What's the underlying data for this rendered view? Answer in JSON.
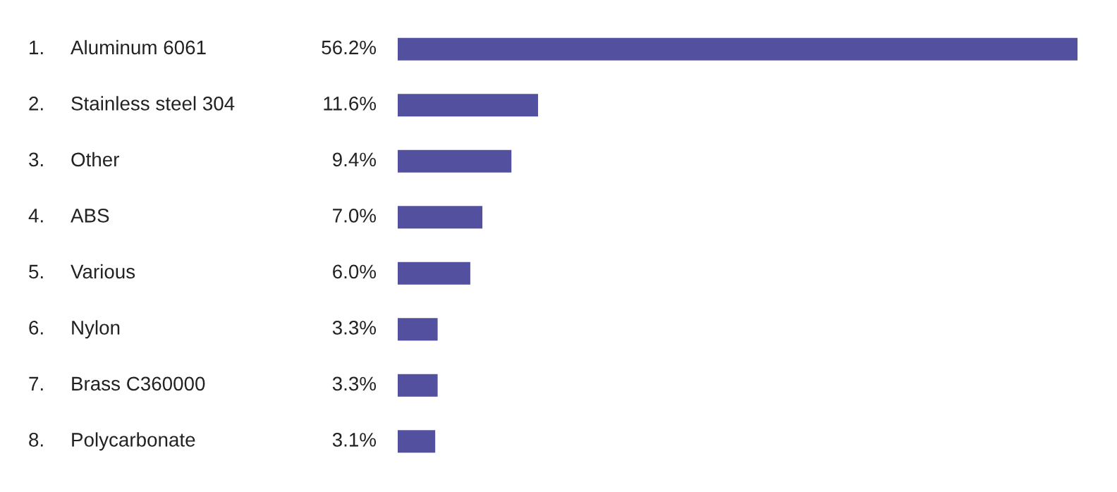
{
  "chart_data": {
    "type": "bar",
    "orientation": "horizontal",
    "categories": [
      "1. Aluminum 6061",
      "2. Stainless steel 304",
      "3. Other",
      "4. ABS",
      "5. Various",
      "6. Nylon",
      "7. Brass C360000",
      "8. Polycarbonate"
    ],
    "values": [
      56.2,
      11.6,
      9.4,
      7.0,
      6.0,
      3.3,
      3.3,
      3.1
    ],
    "value_labels": [
      "56.2%",
      "11.6%",
      "9.4%",
      "7.0%",
      "6.0%",
      "3.3%",
      "3.3%",
      "3.1%"
    ],
    "color": "#5450a0"
  }
}
